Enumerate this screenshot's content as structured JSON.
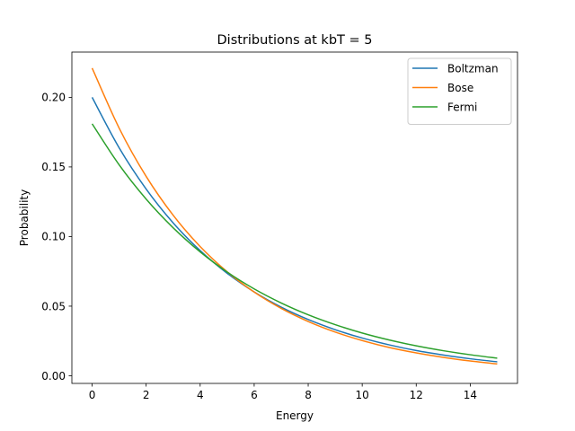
{
  "chart_data": {
    "type": "line",
    "title": "Distributions at kbT = 5",
    "xlabel": "Energy",
    "ylabel": "Probability",
    "xlim": [
      -0.75,
      15.75
    ],
    "ylim": [
      -0.0055,
      0.2325
    ],
    "xticks": [
      0,
      2,
      4,
      6,
      8,
      10,
      12,
      14
    ],
    "xtick_labels": [
      "0",
      "2",
      "4",
      "6",
      "8",
      "10",
      "12",
      "14"
    ],
    "yticks": [
      0.0,
      0.05,
      0.1,
      0.15,
      0.2
    ],
    "ytick_labels": [
      "0.00",
      "0.05",
      "0.10",
      "0.15",
      "0.20"
    ],
    "grid": false,
    "legend_position": "top-right",
    "x": [
      0,
      1,
      2,
      3,
      4,
      5,
      6,
      7,
      8,
      9,
      10,
      11,
      12,
      13,
      14,
      15
    ],
    "series": [
      {
        "name": "Boltzman",
        "color": "#1f77b4",
        "values": [
          0.2,
          0.1637,
          0.1341,
          0.1098,
          0.0899,
          0.0736,
          0.0602,
          0.0493,
          0.0404,
          0.0331,
          0.0271,
          0.0222,
          0.0181,
          0.0149,
          0.0122,
          0.01
        ]
      },
      {
        "name": "Bose",
        "color": "#ff7f0e",
        "values": [
          0.221,
          0.1779,
          0.1432,
          0.1153,
          0.0928,
          0.0747,
          0.0601,
          0.0484,
          0.039,
          0.0314,
          0.0253,
          0.0203,
          0.0164,
          0.0132,
          0.0106,
          0.0085
        ]
      },
      {
        "name": "Fermi",
        "color": "#2ca02c",
        "values": [
          0.181,
          0.1515,
          0.1269,
          0.1063,
          0.089,
          0.0745,
          0.0624,
          0.0523,
          0.0438,
          0.0367,
          0.0307,
          0.0257,
          0.0215,
          0.018,
          0.0151,
          0.0126
        ]
      }
    ]
  }
}
